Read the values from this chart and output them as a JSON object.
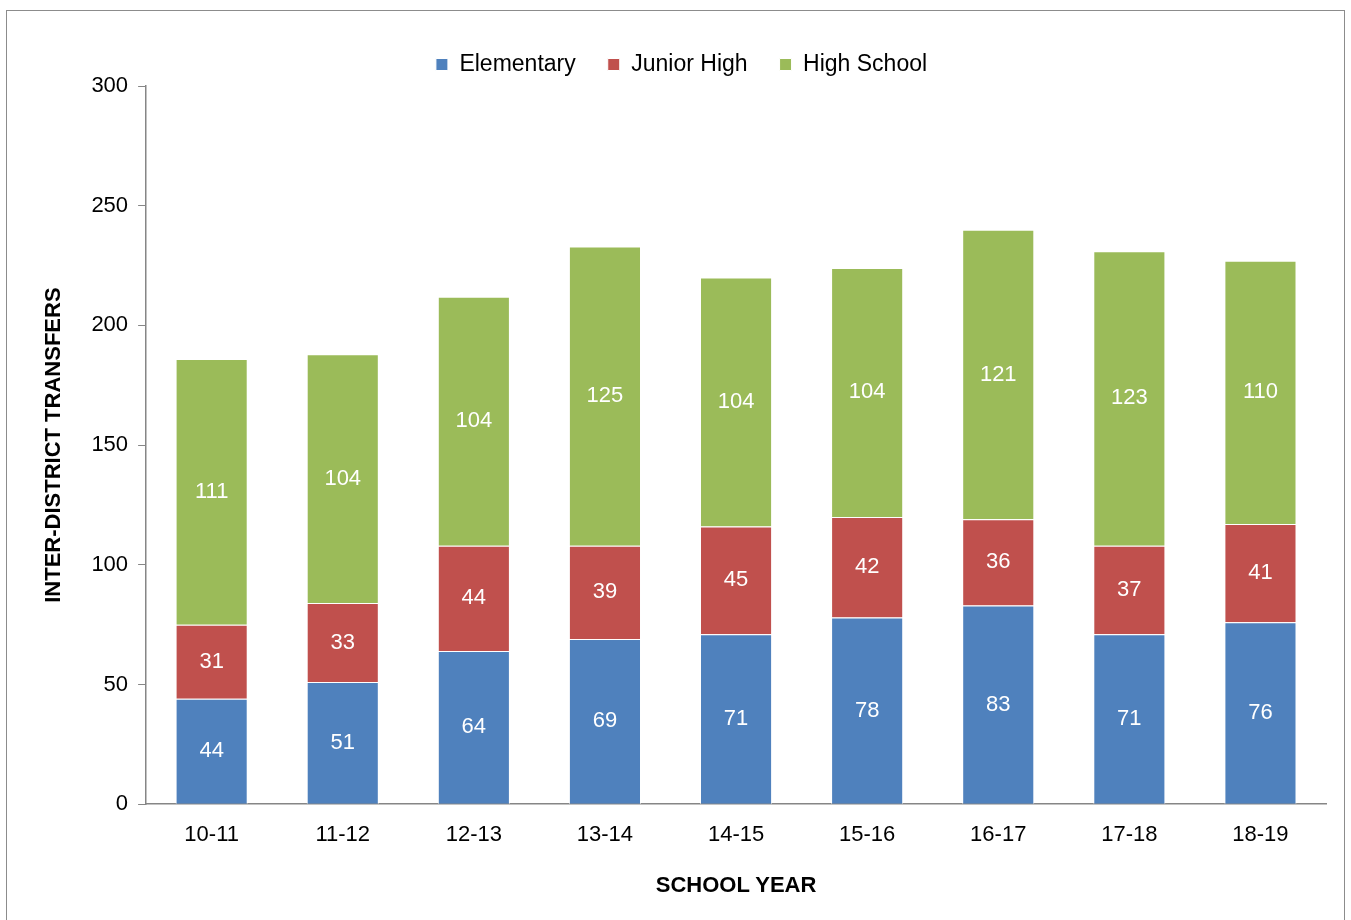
{
  "chart_data": {
    "type": "bar",
    "stacked": true,
    "xlabel": "SCHOOL YEAR",
    "ylabel": "INTER-DISTRICT TRANSFERS",
    "categories": [
      "10-11",
      "11-12",
      "12-13",
      "13-14",
      "14-15",
      "15-16",
      "16-17",
      "17-18",
      "18-19"
    ],
    "series": [
      {
        "name": "Elementary",
        "color": "#4f81bd",
        "values": [
          44,
          51,
          64,
          69,
          71,
          78,
          83,
          71,
          76
        ]
      },
      {
        "name": "Junior High",
        "color": "#c0504d",
        "values": [
          31,
          33,
          44,
          39,
          45,
          42,
          36,
          37,
          41
        ]
      },
      {
        "name": "High School",
        "color": "#9bbb59",
        "values": [
          111,
          104,
          104,
          125,
          104,
          104,
          121,
          123,
          110
        ]
      }
    ],
    "ylim": [
      0,
      300
    ],
    "yticks": [
      0,
      50,
      100,
      150,
      200,
      250,
      300
    ],
    "grid": false,
    "legend": "top",
    "data_labels": true
  }
}
